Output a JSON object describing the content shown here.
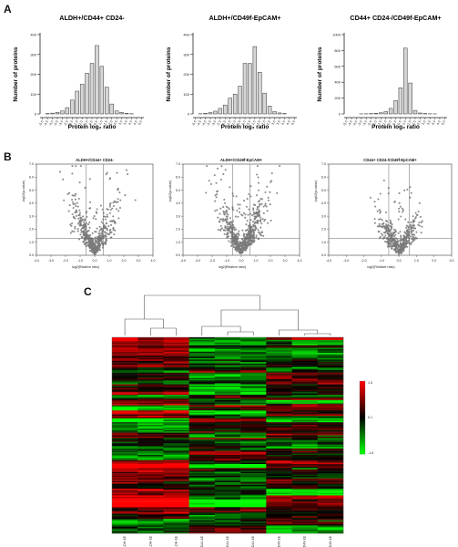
{
  "panel_labels": {
    "a": "A",
    "b": "B",
    "c": "C"
  },
  "chart_data": [
    {
      "type": "bar",
      "panel": "A",
      "title": "ALDH+/CD44+ CD24-",
      "xlabel": "Protein log₂ ratio",
      "ylabel": "Number of proteins",
      "categories": [
        "-5.0",
        "-4.5",
        "-4.0",
        "-3.5",
        "-3.0",
        "-2.5",
        "-2.0",
        "-1.5",
        "-1.0",
        "-0.5",
        "0.0",
        "0.5",
        "1.0",
        "1.5",
        "2.0",
        "2.5",
        "3.0",
        "3.5",
        "4.0",
        "4.5",
        "5.0"
      ],
      "values": [
        0,
        2,
        4,
        8,
        15,
        32,
        70,
        115,
        150,
        205,
        255,
        345,
        240,
        135,
        50,
        15,
        8,
        3,
        1,
        0,
        0
      ],
      "ylim": [
        0,
        400
      ],
      "yticks": [
        0,
        100,
        200,
        300,
        400
      ]
    },
    {
      "type": "bar",
      "panel": "A",
      "title": "ALDH+/CD49f-EpCAM+",
      "xlabel": "Protein log₂ ratio",
      "ylabel": "Number of proteins",
      "categories": [
        "-5.0",
        "-4.5",
        "-4.0",
        "-3.5",
        "-3.0",
        "-2.5",
        "-2.0",
        "-1.5",
        "-1.0",
        "-0.5",
        "0.0",
        "0.5",
        "1.0",
        "1.5",
        "2.0",
        "2.5",
        "3.0",
        "3.5",
        "4.0",
        "4.5",
        "5.0"
      ],
      "values": [
        0,
        1,
        3,
        7,
        14,
        28,
        45,
        80,
        100,
        140,
        255,
        255,
        340,
        210,
        105,
        40,
        12,
        5,
        2,
        0,
        0
      ],
      "ylim": [
        0,
        400
      ],
      "yticks": [
        0,
        100,
        200,
        300,
        400
      ]
    },
    {
      "type": "bar",
      "panel": "A",
      "title": "CD44+ CD24-/CD49f-EpCAM+",
      "xlabel": "Protein log₂ ratio",
      "ylabel": "Number of proteins",
      "categories": [
        "-5.0",
        "-4.5",
        "-4.0",
        "-3.5",
        "-3.0",
        "-2.5",
        "-2.0",
        "-1.5",
        "-1.0",
        "-0.5",
        "0.0",
        "0.5",
        "1.0",
        "1.5",
        "2.0",
        "2.5",
        "3.0",
        "3.5",
        "4.0",
        "4.5",
        "5.0"
      ],
      "values": [
        0,
        0,
        0,
        1,
        2,
        4,
        8,
        15,
        30,
        70,
        170,
        330,
        830,
        390,
        45,
        12,
        5,
        2,
        1,
        0,
        0
      ],
      "ylim": [
        0,
        1000
      ],
      "yticks": [
        0,
        200,
        400,
        600,
        800,
        1000
      ]
    },
    {
      "type": "scatter",
      "panel": "B",
      "title": "ALDH+/CD44+ CD24-",
      "xlabel": "log2(Relative ratio)",
      "ylabel": "-log10(p-value)",
      "xlim": [
        -4,
        4
      ],
      "ylim": [
        0,
        7
      ],
      "xticks": [
        "-4.0",
        "-3.0",
        "-2.0",
        "-1.0",
        "0.0",
        "1.0",
        "2.0",
        "3.0",
        "4.0"
      ],
      "yticks": [
        "0.0",
        "1.0",
        "2.0",
        "3.0",
        "4.0",
        "5.0",
        "6.0",
        "7.0"
      ],
      "seed": 11,
      "n": 520,
      "spread": 1.15,
      "vlines": [
        -0.58,
        0.58
      ],
      "hline": 1.3
    },
    {
      "type": "scatter",
      "panel": "B",
      "title": "ALDH+/CD49f-EpCAM+",
      "xlabel": "log2(Relative ratio)",
      "ylabel": "-log10(p-value)",
      "xlim": [
        -4,
        4
      ],
      "ylim": [
        0,
        7
      ],
      "xticks": [
        "-4.0",
        "-3.0",
        "-2.0",
        "-1.0",
        "0.0",
        "1.0",
        "2.0",
        "3.0",
        "4.0"
      ],
      "yticks": [
        "0.0",
        "1.0",
        "2.0",
        "3.0",
        "4.0",
        "5.0",
        "6.0",
        "7.0"
      ],
      "seed": 23,
      "n": 650,
      "spread": 1.25,
      "vlines": [
        -0.58,
        0.58
      ],
      "hline": 1.3
    },
    {
      "type": "scatter",
      "panel": "B",
      "title": "CD44+ CD24-/CD49f-EpCAM+",
      "xlabel": "log2(Relative ratio)",
      "ylabel": "-log10(p-value)",
      "xlim": [
        -4,
        3
      ],
      "ylim": [
        0,
        7
      ],
      "xticks": [
        "-4.0",
        "-3.0",
        "-2.0",
        "-1.0",
        "0.0",
        "1.0",
        "2.0",
        "3.0"
      ],
      "yticks": [
        "0.0",
        "1.0",
        "2.0",
        "3.0",
        "4.0",
        "5.0",
        "6.0",
        "7.0"
      ],
      "seed": 37,
      "n": 470,
      "spread": 0.85,
      "vlines": [
        -0.58,
        0.58
      ],
      "hline": 1.3
    },
    {
      "type": "heatmap",
      "panel": "C",
      "columns": [
        "ALDH-1E",
        "ALDH-1E",
        "ALDH-1E",
        "CD44-1E",
        "CD44-1E",
        "CD44-1E",
        "CD49-1E",
        "CD49-1E",
        "CD49-1E"
      ],
      "scale": {
        "max": "1.5",
        "mid": "0.1",
        "min": "-1.5"
      },
      "colors": {
        "high": "#ff0000",
        "mid": "#000000",
        "low": "#00ff00"
      }
    }
  ]
}
